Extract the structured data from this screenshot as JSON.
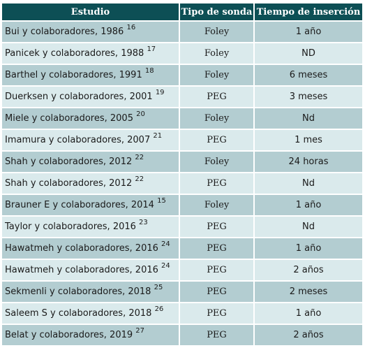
{
  "table": {
    "headers": [
      "Estudio",
      "Tipo de sonda",
      "Tiempo de inserción"
    ],
    "rows": [
      {
        "study": "Bui y colaboradores, 1986",
        "ref": "16",
        "probe": "Foley",
        "time": "1 año"
      },
      {
        "study": "Panicek y colaboradores, 1988",
        "ref": "17",
        "probe": "Foley",
        "time": "ND"
      },
      {
        "study": "Barthel y colaboradores, 1991",
        "ref": "18",
        "probe": "Foley",
        "time": "6 meses"
      },
      {
        "study": "Duerksen y colaboradores, 2001",
        "ref": "19",
        "probe": "PEG",
        "time": "3 meses"
      },
      {
        "study": "Miele y colaboradores, 2005",
        "ref": "20",
        "probe": "Foley",
        "time": "Nd"
      },
      {
        "study": "Imamura y colaboradores, 2007",
        "ref": "21",
        "probe": "PEG",
        "time": "1 mes"
      },
      {
        "study": "Shah y colaboradores, 2012",
        "ref": "22",
        "probe": "Foley",
        "time": "24 horas"
      },
      {
        "study": "Shah y colaboradores, 2012",
        "ref": "22",
        "probe": "PEG",
        "time": "Nd"
      },
      {
        "study": "Brauner E y colaboradores, 2014",
        "ref": "15",
        "probe": "Foley",
        "time": "1 año"
      },
      {
        "study": "Taylor y colaboradores, 2016",
        "ref": "23",
        "probe": "PEG",
        "time": "Nd"
      },
      {
        "study": "Hawatmeh y colaboradores, 2016",
        "ref": "24",
        "probe": "PEG",
        "time": "1 año"
      },
      {
        "study": "Hawatmeh y colaboradores, 2016",
        "ref": "24",
        "probe": "PEG",
        "time": "2 años"
      },
      {
        "study": "Sekmenli y colaboradores, 2018",
        "ref": "25",
        "probe": "PEG",
        "time": "2 meses"
      },
      {
        "study": "Saleem S y colaboradores, 2018",
        "ref": "26",
        "probe": "PEG",
        "time": "1 año"
      },
      {
        "study": "Belat y colaboradores, 2019",
        "ref": "27",
        "probe": "PEG",
        "time": "2 años"
      }
    ]
  }
}
